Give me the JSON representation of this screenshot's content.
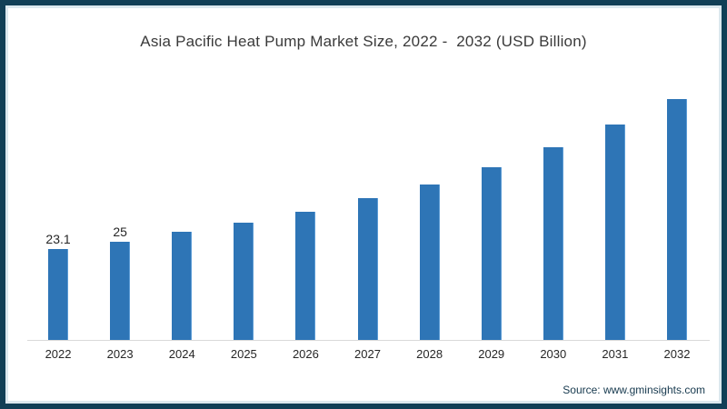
{
  "page": {
    "title": "Asia Pacific Heat Pump Market Size, 2022 -  2032 (USD Billion)",
    "source": "Source: www.gminsights.com"
  },
  "colors": {
    "bar": "#2e75b6",
    "frame": "#113f56",
    "frame_inner": "#dce8ee",
    "baseline": "#d9d9d9",
    "title_text": "#3a3a3a",
    "axis_text": "#262626",
    "source_text": "#16394e"
  },
  "chart_data": {
    "type": "bar",
    "title": "Asia Pacific Heat Pump Market Size, 2022 -  2032 (USD Billion)",
    "unit": "USD Billion",
    "categories": [
      "2022",
      "2023",
      "2024",
      "2025",
      "2026",
      "2027",
      "2028",
      "2029",
      "2030",
      "2031",
      "2032"
    ],
    "values": [
      23.1,
      25,
      27.4,
      29.8,
      32.6,
      36.0,
      39.6,
      43.9,
      48.9,
      54.8,
      61.1
    ],
    "data_labels": [
      "23.1",
      "25",
      null,
      null,
      null,
      null,
      null,
      null,
      null,
      null,
      null
    ],
    "ylim": [
      0,
      65
    ],
    "grid": false,
    "legend": false,
    "xlabel": "",
    "ylabel": "",
    "source": "Source: www.gminsights.com",
    "bar_color": "#2e75b6"
  }
}
